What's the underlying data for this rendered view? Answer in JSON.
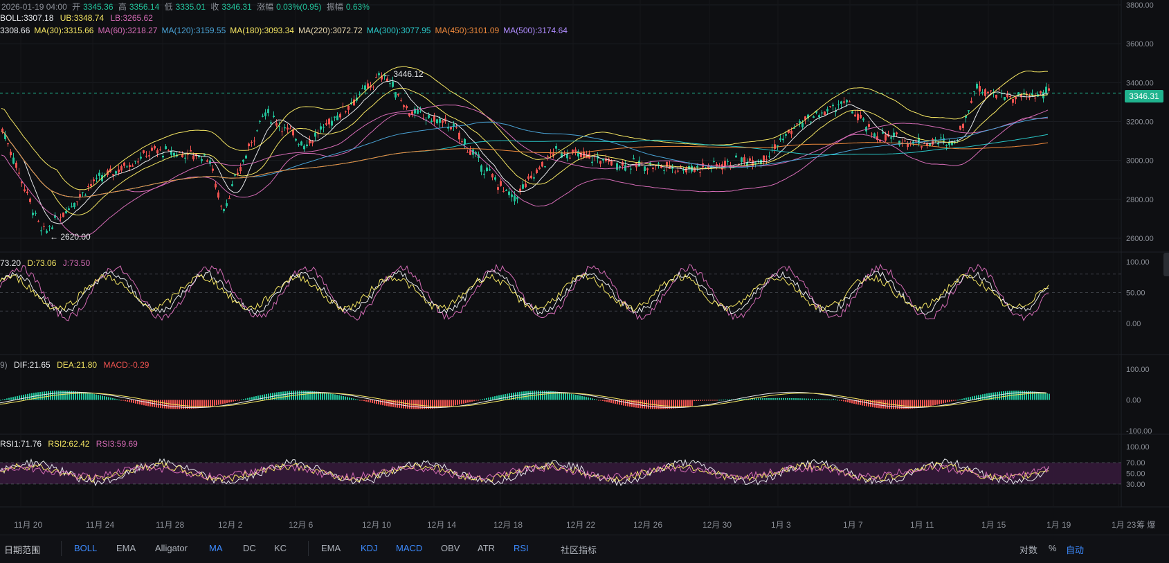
{
  "header": {
    "datetime": "2026-01-19 04:00",
    "open_label": "开",
    "open": "3345.36",
    "high_label": "高",
    "high": "3356.14",
    "low_label": "低",
    "low": "3335.01",
    "close_label": "收",
    "close": "3346.31",
    "change_label": "涨幅",
    "change": "0.03%(0.95)",
    "amp_label": "振幅",
    "amp": "0.63%"
  },
  "boll": {
    "label": "BOLL:3307.18",
    "ub": "UB:3348.74",
    "lb": "LB:3265.62"
  },
  "ma_line": [
    {
      "text": "3308.66",
      "color": "#e8eaed"
    },
    {
      "text": "MA(30):3315.66",
      "color": "#f5e663"
    },
    {
      "text": "MA(60):3218.27",
      "color": "#d46bb5"
    },
    {
      "text": "MA(120):3159.55",
      "color": "#4aa3d6"
    },
    {
      "text": "MA(180):3093.34",
      "color": "#f5e663"
    },
    {
      "text": "MA(220):3072.72",
      "color": "#e8d8b0"
    },
    {
      "text": "MA(300):3077.95",
      "color": "#29c7c7"
    },
    {
      "text": "MA(450):3101.09",
      "color": "#f08a3c"
    },
    {
      "text": "MA(500):3174.64",
      "color": "#b08cff"
    }
  ],
  "annotations": {
    "high": "3446.12",
    "low": "2620.00"
  },
  "current_price": "3346.31",
  "price_axis": [
    "3800.00",
    "3600.00",
    "3400.00",
    "3200.00",
    "3000.00",
    "2800.00",
    "2600.00"
  ],
  "kdj": {
    "k": "73.20",
    "d": "D:73.06",
    "j": "J:73.50",
    "axis": [
      "100.00",
      "50.00",
      "0.00"
    ]
  },
  "macd": {
    "prefix": "9)",
    "dif": "DIF:21.65",
    "dea": "DEA:21.80",
    "macd": "MACD:-0.29",
    "axis": [
      "100.00",
      "0.00",
      "-100.00"
    ]
  },
  "rsi": {
    "rsi1": "RSI1:71.76",
    "rsi2": "RSI2:62.42",
    "rsi3": "RSI3:59.69",
    "axis": [
      "100.00",
      "70.00",
      "50.00",
      "30.00"
    ]
  },
  "x_axis": [
    "11月 20",
    "11月 24",
    "11月 28",
    "12月 2",
    "12月 6",
    "12月 10",
    "12月 14",
    "12月 18",
    "12月 22",
    "12月 26",
    "12月 30",
    "1月 3",
    "1月 7",
    "1月 11",
    "1月 15",
    "1月 19",
    "1月 23"
  ],
  "axis_corner": "筹 爆",
  "toolbar": {
    "range": "日期范围",
    "items": [
      {
        "label": "BOLL",
        "active": true
      },
      {
        "label": "EMA",
        "active": false
      },
      {
        "label": "Alligator",
        "active": false
      },
      {
        "label": "MA",
        "active": true
      },
      {
        "label": "DC",
        "active": false
      },
      {
        "label": "KC",
        "active": false
      },
      {
        "label": "EMA",
        "active": false
      },
      {
        "label": "KDJ",
        "active": true
      },
      {
        "label": "MACD",
        "active": true
      },
      {
        "label": "OBV",
        "active": false
      },
      {
        "label": "ATR",
        "active": false
      },
      {
        "label": "RSI",
        "active": true
      },
      {
        "label": "社区指标",
        "active": false
      }
    ],
    "right": [
      "对数",
      "%",
      "自动"
    ]
  },
  "colors": {
    "up": "#22c39b",
    "down": "#ef5350",
    "bg": "#0e0f12",
    "accent": "#3d8bff"
  }
}
